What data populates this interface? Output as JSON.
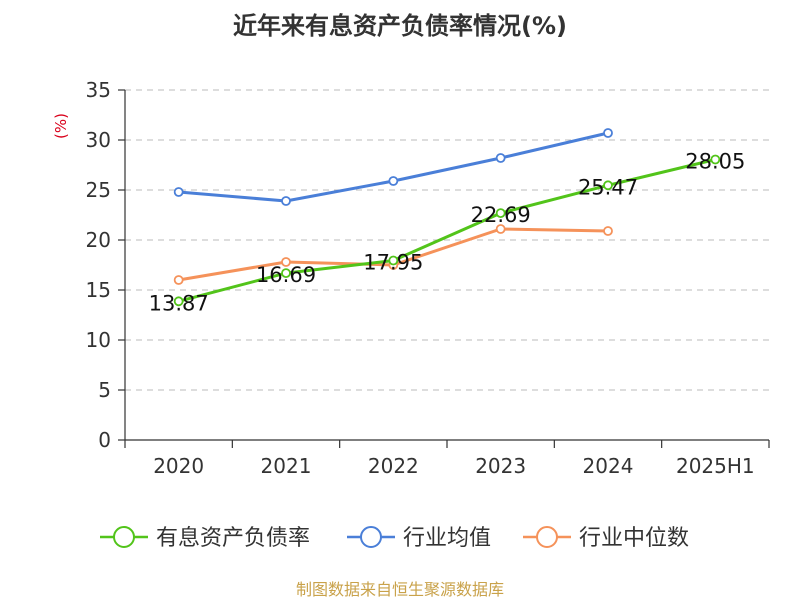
{
  "colors": {
    "series_1": "#52c41a",
    "series_2": "#4a7fd8",
    "series_3": "#f5925a",
    "axis": "#333333",
    "grid": "#bbbbbb",
    "ylabel": "#d9001b",
    "source": "#c9a24a"
  },
  "chart_data": {
    "type": "line",
    "title": "近年来有息资产负债率情况(%)",
    "ylabel": "(%)",
    "xlabel": "",
    "categories": [
      "2020",
      "2021",
      "2022",
      "2023",
      "2024",
      "2025H1"
    ],
    "ylim": [
      0,
      35
    ],
    "yticks": [
      0,
      5,
      10,
      15,
      20,
      25,
      30,
      35
    ],
    "grid": true,
    "legend_position": "bottom",
    "series": [
      {
        "name": "有息资产负债率",
        "values": [
          13.87,
          16.69,
          17.95,
          22.69,
          25.47,
          28.05
        ],
        "labels": [
          "13.87",
          "16.69",
          "17.95",
          "22.69",
          "25.47",
          "28.05"
        ]
      },
      {
        "name": "行业均值",
        "values": [
          24.8,
          23.9,
          25.9,
          28.2,
          30.7,
          null
        ]
      },
      {
        "name": "行业中位数",
        "values": [
          16.0,
          17.8,
          17.5,
          21.1,
          20.9,
          null
        ]
      }
    ]
  },
  "source": "制图数据来自恒生聚源数据库"
}
